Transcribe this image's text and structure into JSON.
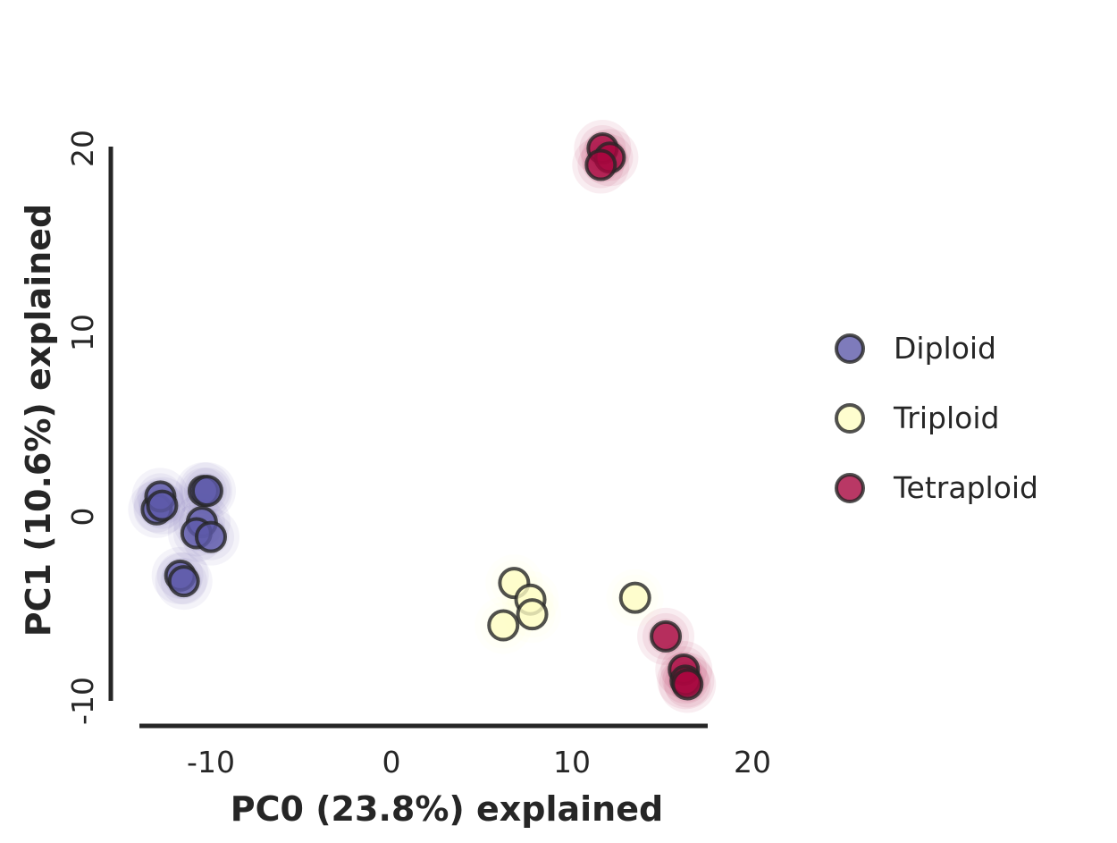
{
  "chart_data": {
    "type": "scatter",
    "title": "",
    "xlabel": "PC0 (23.8%) explained",
    "ylabel": "PC1 (10.6%) explained",
    "xlim": [
      -15,
      20
    ],
    "ylim": [
      -10,
      20
    ],
    "xticks": [
      "-10",
      "0",
      "10",
      "20"
    ],
    "yticks": [
      "-10",
      "0",
      "10",
      "20"
    ],
    "grid": false,
    "legend_position": "right",
    "series": [
      {
        "name": "Diploid",
        "color": "#5e5aaa",
        "points": [
          [
            -13.0,
            0.4
          ],
          [
            -12.8,
            1.1
          ],
          [
            -12.7,
            0.6
          ],
          [
            -10.4,
            1.4
          ],
          [
            -10.2,
            1.4
          ],
          [
            -10.5,
            -0.3
          ],
          [
            -10.8,
            -0.9
          ],
          [
            -10.0,
            -1.1
          ],
          [
            -11.7,
            -3.2
          ],
          [
            -11.5,
            -3.5
          ]
        ]
      },
      {
        "name": "Triploid",
        "color": "#fefcc3",
        "points": [
          [
            6.8,
            -3.6
          ],
          [
            7.7,
            -4.5
          ],
          [
            6.2,
            -5.9
          ],
          [
            7.8,
            -5.3
          ],
          [
            13.5,
            -4.4
          ]
        ]
      },
      {
        "name": "Tetraploid",
        "color": "#a8063e",
        "points": [
          [
            11.7,
            20.0
          ],
          [
            12.1,
            19.5
          ],
          [
            11.6,
            19.1
          ],
          [
            15.2,
            -6.5
          ],
          [
            16.2,
            -8.3
          ],
          [
            16.3,
            -8.9
          ],
          [
            16.4,
            -9.1
          ]
        ]
      }
    ]
  }
}
